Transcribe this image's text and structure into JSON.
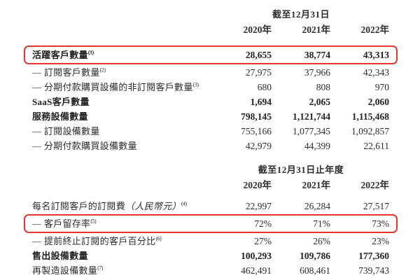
{
  "page": {
    "background_color": "#ffffff",
    "highlight_border_color": "#e1392e",
    "text_color": "#2d2d2d"
  },
  "section1": {
    "period_header": "截至12月31日",
    "years": [
      "2020年",
      "2021年",
      "2022年"
    ],
    "rows": [
      {
        "label": "活躍客戶數量",
        "sup": "(1)",
        "values": [
          "28,655",
          "38,774",
          "43,313"
        ]
      },
      {
        "label": "— 訂閱客戶數量",
        "sup": "(2)",
        "values": [
          "27,975",
          "37,966",
          "42,343"
        ]
      },
      {
        "label": "— 分期付款購買設備的非訂閱客戶數量",
        "sup": "(3)",
        "values": [
          "680",
          "808",
          "970"
        ]
      },
      {
        "label": "SaaS客戶數量",
        "values": [
          "1,694",
          "2,065",
          "2,060"
        ]
      },
      {
        "label": "服務設備數量",
        "values": [
          "798,145",
          "1,121,744",
          "1,115,468"
        ]
      },
      {
        "label": "— 訂閱設備數量",
        "values": [
          "755,166",
          "1,077,345",
          "1,092,857"
        ]
      },
      {
        "label": "— 分期付款購買設備數量",
        "values": [
          "42,979",
          "44,399",
          "22,611"
        ]
      }
    ]
  },
  "section2": {
    "period_header": "截至12月31日止年度",
    "years": [
      "2020年",
      "2021年",
      "2022年"
    ],
    "rows": [
      {
        "label": "每名訂閱客戶的訂閱費",
        "italic": "（人民幣元）",
        "sup": "(4)",
        "values": [
          "22,997",
          "26,284",
          "27,517"
        ]
      },
      {
        "label": "— 客戶留存率",
        "sup": "(5)",
        "values": [
          "72%",
          "71%",
          "73%"
        ]
      },
      {
        "label": "— 提前終止訂閱的客戶百分比",
        "sup": "(6)",
        "values": [
          "27%",
          "26%",
          "23%"
        ]
      },
      {
        "label": "售出設備數量",
        "values": [
          "100,293",
          "109,786",
          "177,360"
        ]
      },
      {
        "label": "再製造設備數量",
        "sup": "(7)",
        "values": [
          "462,491",
          "608,461",
          "739,743"
        ]
      }
    ]
  }
}
